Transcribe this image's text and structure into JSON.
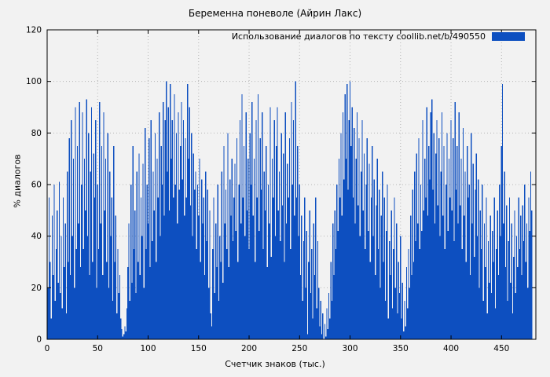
{
  "page": {
    "background": "#f2f2f2"
  },
  "chart_data": {
    "type": "bar",
    "title": "Беременна поневоле (Айрин Лакс)",
    "legend": "Использование диалогов по тексту  coollib.net/b/490550",
    "xlabel": "Счетчик знаков (тыс.)",
    "ylabel": "% диалогов",
    "xlim": [
      0,
      484
    ],
    "ylim": [
      0,
      120
    ],
    "x_ticks": [
      0,
      50,
      100,
      150,
      200,
      250,
      300,
      350,
      400,
      450
    ],
    "y_ticks": [
      0,
      20,
      40,
      60,
      80,
      100,
      120
    ],
    "bar_color": "#0d4fc0",
    "grid": true,
    "legend_position": "top-right-inside",
    "x_start": 0,
    "x_step": 1,
    "values": [
      45,
      20,
      55,
      30,
      8,
      48,
      25,
      60,
      15,
      35,
      50,
      22,
      61,
      18,
      40,
      12,
      55,
      28,
      45,
      10,
      65,
      30,
      78,
      25,
      85,
      40,
      70,
      20,
      90,
      35,
      75,
      45,
      92,
      28,
      60,
      88,
      35,
      70,
      50,
      93,
      40,
      80,
      25,
      65,
      90,
      30,
      72,
      55,
      85,
      20,
      60,
      35,
      92,
      45,
      75,
      25,
      88,
      50,
      70,
      30,
      80,
      20,
      65,
      40,
      55,
      15,
      75,
      30,
      48,
      10,
      35,
      18,
      25,
      8,
      4,
      1,
      2,
      5,
      3,
      12,
      28,
      45,
      15,
      60,
      22,
      75,
      35,
      50,
      18,
      65,
      30,
      72,
      25,
      55,
      40,
      68,
      20,
      82,
      35,
      60,
      45,
      78,
      28,
      85,
      38,
      65,
      50,
      80,
      30,
      70,
      55,
      88,
      40,
      75,
      60,
      92,
      48,
      85,
      100,
      65,
      90,
      50,
      99,
      70,
      85,
      55,
      95,
      60,
      80,
      45,
      88,
      58,
      75,
      92,
      62,
      85,
      48,
      78,
      55,
      99,
      70,
      90,
      52,
      80,
      40,
      72,
      58,
      65,
      35,
      60,
      48,
      70,
      30,
      62,
      45,
      55,
      25,
      65,
      38,
      58,
      20,
      50,
      10,
      5,
      35,
      55,
      18,
      45,
      28,
      60,
      15,
      40,
      30,
      65,
      22,
      75,
      45,
      58,
      35,
      80,
      28,
      62,
      48,
      70,
      38,
      55,
      68,
      42,
      78,
      30,
      60,
      85,
      45,
      95,
      55,
      75,
      40,
      88,
      50,
      70,
      35,
      80,
      60,
      92,
      48,
      70,
      30,
      85,
      55,
      95,
      42,
      78,
      58,
      88,
      35,
      65,
      50,
      75,
      28,
      60,
      45,
      90,
      32,
      70,
      55,
      85,
      40,
      75,
      90,
      50,
      65,
      38,
      80,
      52,
      72,
      30,
      88,
      45,
      68,
      55,
      78,
      35,
      92,
      60,
      85,
      48,
      100,
      55,
      75,
      40,
      60,
      25,
      48,
      15,
      38,
      55,
      20,
      42,
      2,
      30,
      50,
      18,
      35,
      8,
      45,
      25,
      55,
      12,
      38,
      20,
      5,
      15,
      2,
      10,
      0,
      6,
      1,
      12,
      4,
      18,
      8,
      30,
      15,
      45,
      25,
      50,
      35,
      60,
      42,
      70,
      55,
      80,
      48,
      88,
      62,
      95,
      70,
      99,
      58,
      85,
      100,
      75,
      90,
      55,
      82,
      45,
      70,
      88,
      52,
      78,
      40,
      65,
      85,
      50,
      72,
      35,
      60,
      78,
      42,
      68,
      30,
      55,
      75,
      40,
      62,
      25,
      52,
      70,
      35,
      58,
      20,
      48,
      65,
      30,
      55,
      15,
      42,
      60,
      8,
      38,
      25,
      50,
      12,
      35,
      55,
      20,
      45,
      10,
      30,
      18,
      40,
      8,
      22,
      3,
      15,
      5,
      28,
      12,
      35,
      20,
      48,
      25,
      58,
      30,
      65,
      38,
      72,
      45,
      78,
      35,
      60,
      42,
      85,
      50,
      70,
      55,
      90,
      48,
      75,
      62,
      88,
      93,
      58,
      80,
      45,
      72,
      85,
      52,
      78,
      40,
      65,
      88,
      48,
      75,
      35,
      60,
      80,
      42,
      70,
      55,
      85,
      50,
      78,
      38,
      92,
      58,
      75,
      45,
      88,
      52,
      70,
      35,
      82,
      48,
      65,
      30,
      75,
      55,
      60,
      25,
      80,
      45,
      68,
      32,
      58,
      72,
      40,
      62,
      20,
      50,
      35,
      60,
      15,
      45,
      28,
      55,
      10,
      38,
      22,
      48,
      18,
      42,
      30,
      55,
      12,
      35,
      50,
      25,
      60,
      40,
      75,
      99,
      45,
      65,
      28,
      52,
      15,
      38,
      55,
      22,
      45,
      10,
      32,
      50,
      18,
      40,
      28,
      55,
      35,
      48,
      25,
      52,
      38,
      60,
      30,
      45,
      20,
      55,
      42,
      65,
      50
    ]
  }
}
